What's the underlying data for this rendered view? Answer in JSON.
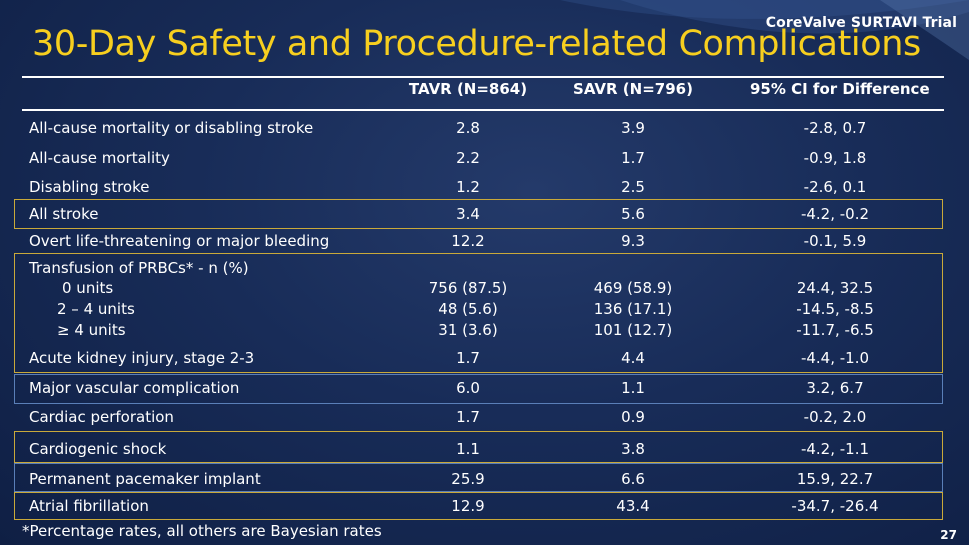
{
  "header": {
    "trial_name": "CoreValve SURTAVI Trial",
    "title": "30-Day Safety and Procedure-related Complications"
  },
  "table": {
    "columns": [
      "TAVR (N=864)",
      "SAVR (N=796)",
      "95% CI for Difference"
    ],
    "rows": [
      {
        "label": "All-cause mortality or disabling stroke",
        "tavr": "2.8",
        "savr": "3.9",
        "ci": "-2.8, 0.7"
      },
      {
        "label": "All-cause mortality",
        "tavr": "2.2",
        "savr": "1.7",
        "ci": "-0.9, 1.8"
      },
      {
        "label": "Disabling stroke",
        "tavr": "1.2",
        "savr": "2.5",
        "ci": "-2.6, 0.1"
      },
      {
        "label": "All stroke",
        "tavr": "3.4",
        "savr": "5.6",
        "ci": "-4.2, -0.2"
      },
      {
        "label": "Overt  life-threatening or major bleeding",
        "tavr": "12.2",
        "savr": "9.3",
        "ci": "-0.1, 5.9"
      },
      {
        "label": "Transfusion of PRBCs* - n (%)",
        "tavr": "",
        "savr": "",
        "ci": ""
      },
      {
        "label": "0 units",
        "tavr": "756 (87.5)",
        "savr": "469 (58.9)",
        "ci": "24.4, 32.5"
      },
      {
        "label": "2 – 4 units",
        "tavr": "48 (5.6)",
        "savr": "136 (17.1)",
        "ci": "-14.5, -8.5"
      },
      {
        "label": "≥ 4 units",
        "tavr": "31 (3.6)",
        "savr": "101 (12.7)",
        "ci": "-11.7, -6.5"
      },
      {
        "label": "Acute kidney injury, stage 2-3",
        "tavr": "1.7",
        "savr": "4.4",
        "ci": "-4.4, -1.0"
      },
      {
        "label": "Major vascular complication",
        "tavr": "6.0",
        "savr": "1.1",
        "ci": "3.2, 6.7"
      },
      {
        "label": "Cardiac perforation",
        "tavr": "1.7",
        "savr": "0.9",
        "ci": "-0.2, 2.0"
      },
      {
        "label": "Cardiogenic shock",
        "tavr": "1.1",
        "savr": "3.8",
        "ci": "-4.2, -1.1"
      },
      {
        "label": "Permanent pacemaker implant",
        "tavr": "25.9",
        "savr": "6.6",
        "ci": "15.9, 22.7"
      },
      {
        "label": "Atrial fibrillation",
        "tavr": "12.9",
        "savr": "43.4",
        "ci": "-34.7, -26.4"
      }
    ]
  },
  "footer": {
    "footnote": "*Percentage rates, all others are Bayesian rates",
    "page_number": "27"
  },
  "colors": {
    "title": "#f7cf1f",
    "background": "#182c58",
    "highlight_gold": "#c9a93a",
    "highlight_blue": "#5a7fb8"
  }
}
